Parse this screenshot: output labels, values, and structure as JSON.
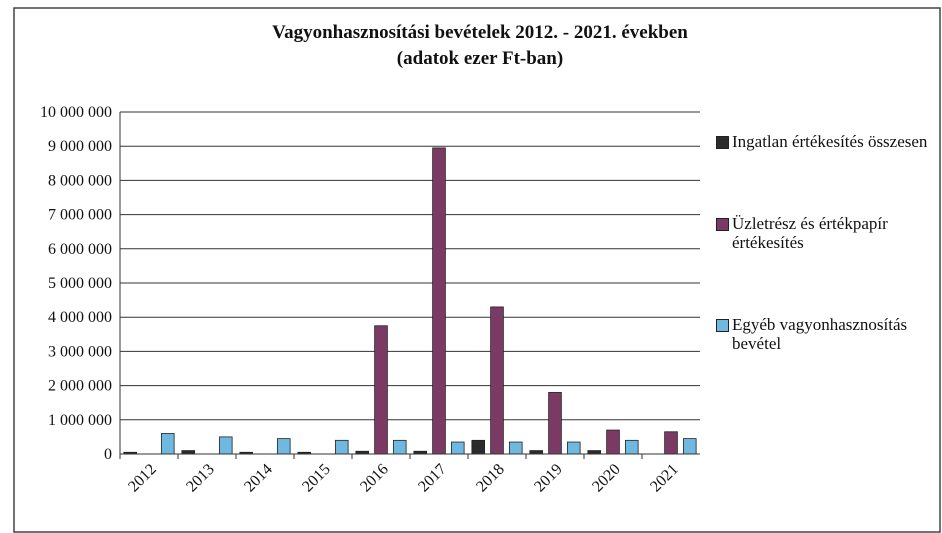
{
  "chart_data": {
    "type": "bar",
    "title": "Vagyonhasznosítási bevételek 2012. - 2021. években",
    "subtitle": "(adatok ezer Ft-ban)",
    "categories": [
      "2012",
      "2013",
      "2014",
      "2015",
      "2016",
      "2017",
      "2018",
      "2019",
      "2020",
      "2021"
    ],
    "series": [
      {
        "name": "Ingatlan értékesítés összesen",
        "color": "#2b2b2b",
        "values": [
          50000,
          100000,
          50000,
          50000,
          80000,
          80000,
          400000,
          100000,
          100000,
          0
        ]
      },
      {
        "name": "Üzletrész és értékpapír értékesítés",
        "color": "#7b3a63",
        "values": [
          0,
          0,
          0,
          0,
          3750000,
          8950000,
          4300000,
          1800000,
          700000,
          650000
        ]
      },
      {
        "name": "Egyéb vagyonhasznosítás bevétel",
        "color": "#6fb8e0",
        "values": [
          600000,
          500000,
          450000,
          400000,
          400000,
          350000,
          350000,
          350000,
          400000,
          450000
        ]
      }
    ],
    "ylim": [
      0,
      10000000
    ],
    "yticks": [
      0,
      {
        "value": 1000000,
        "label": "1 000 000"
      },
      {
        "value": 2000000,
        "label": "2 000 000"
      },
      {
        "value": 3000000,
        "label": "3 000 000"
      },
      {
        "value": 4000000,
        "label": "4 000 000"
      },
      {
        "value": 5000000,
        "label": "5 000 000"
      },
      {
        "value": 6000000,
        "label": "6 000 000"
      },
      {
        "value": 7000000,
        "label": "7 000 000"
      },
      {
        "value": 8000000,
        "label": "8 000 000"
      },
      {
        "value": 9000000,
        "label": "9 000 000"
      },
      {
        "value": 10000000,
        "label": "10 000 000"
      }
    ],
    "grid": true,
    "legend": "right"
  }
}
